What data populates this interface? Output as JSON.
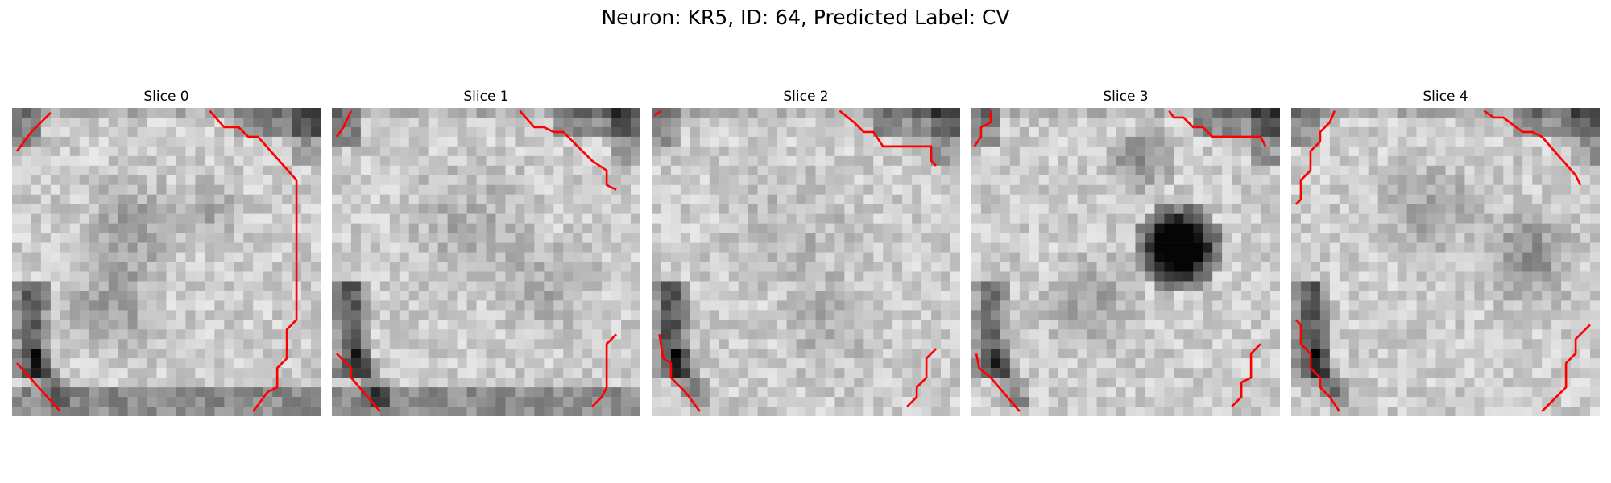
{
  "figure": {
    "title": "Neuron: KR5, ID: 64, Predicted Label: CV"
  },
  "panels": [
    {
      "title": "Slice 0"
    },
    {
      "title": "Slice 1"
    },
    {
      "title": "Slice 2"
    },
    {
      "title": "Slice 3"
    },
    {
      "title": "Slice 4"
    }
  ],
  "colors": {
    "contour": "#ff0000",
    "colormap": "gray"
  }
}
